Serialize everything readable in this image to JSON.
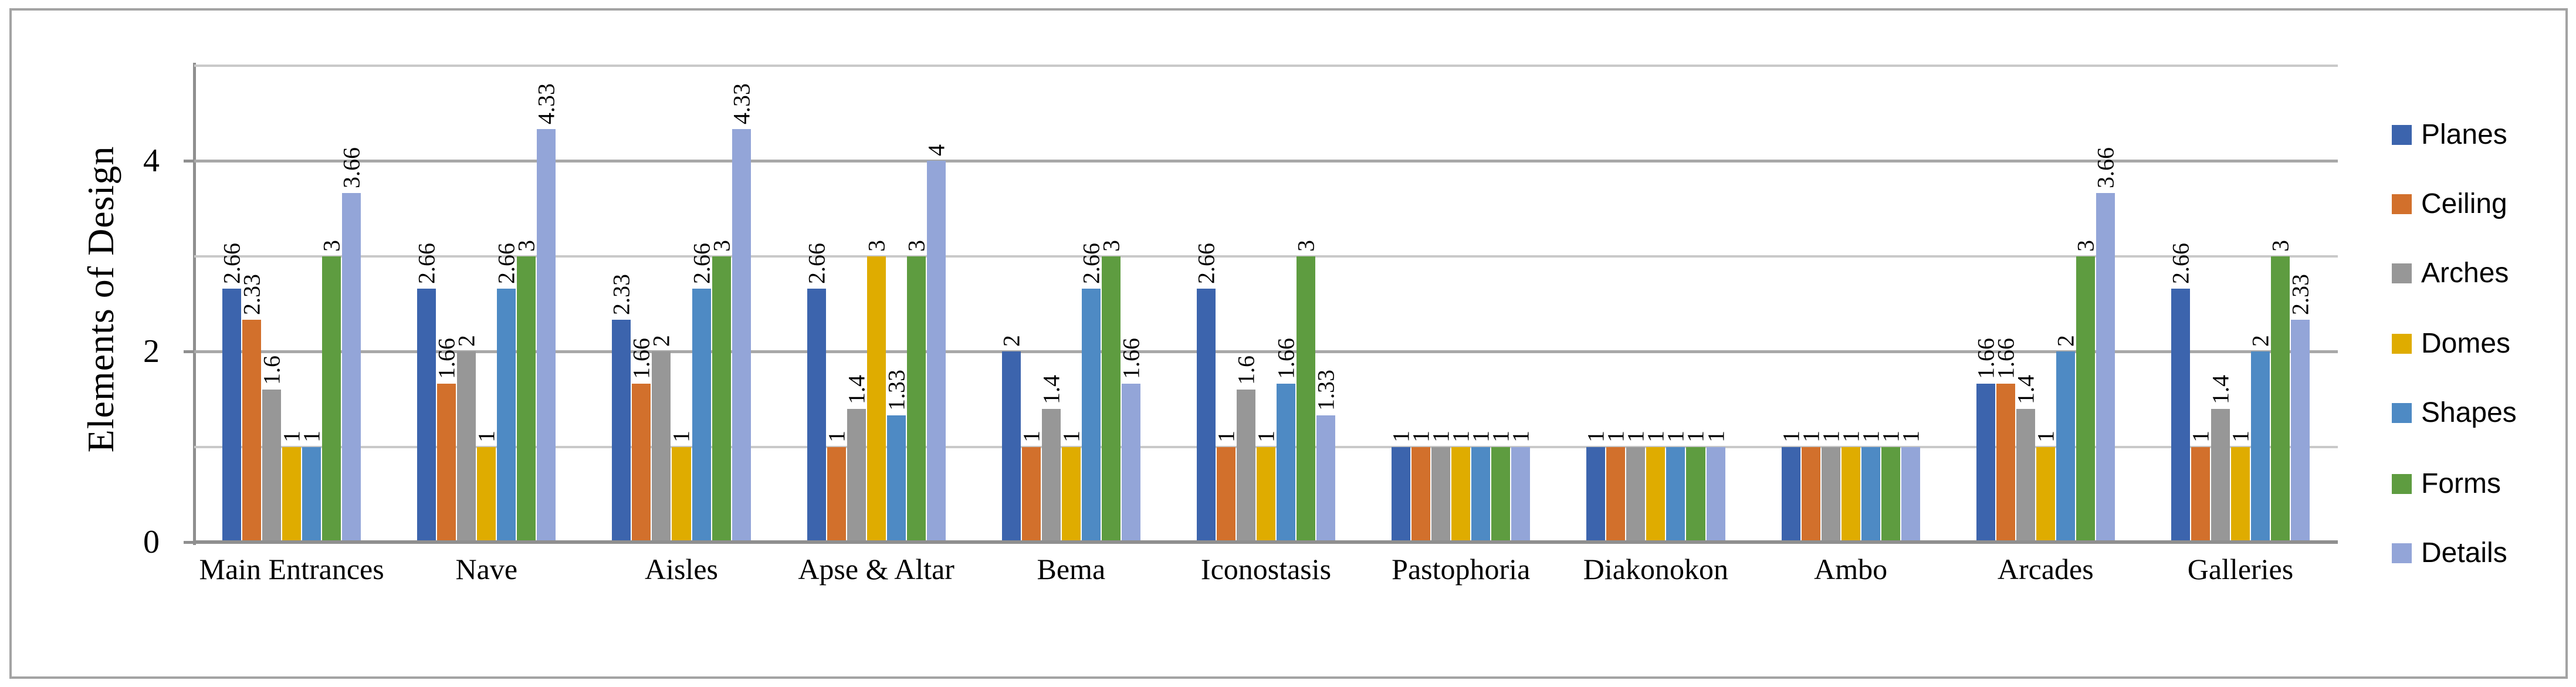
{
  "chart_data": {
    "type": "bar",
    "title": "",
    "ylabel": "Elements of Design",
    "xlabel": "",
    "categories": [
      "Main Entrances",
      "Nave",
      "Aisles",
      "Apse & Altar",
      "Bema",
      "Iconostasis",
      "Pastophoria",
      "Diakonokon",
      "Ambo",
      "Arcades",
      "Galleries"
    ],
    "series": [
      {
        "name": "Planes",
        "color": "#3C64AD",
        "values": [
          2.66,
          2.66,
          2.33,
          2.66,
          2,
          2.66,
          1,
          1,
          1,
          1.66,
          2.66
        ]
      },
      {
        "name": "Ceiling",
        "color": "#D2702C",
        "values": [
          2.33,
          1.66,
          1.66,
          1,
          1,
          1,
          1,
          1,
          1,
          1.66,
          1
        ]
      },
      {
        "name": "Arches",
        "color": "#979797",
        "values": [
          1.6,
          2,
          2,
          1.4,
          1.4,
          1.6,
          1,
          1,
          1,
          1.4,
          1.4
        ]
      },
      {
        "name": "Domes",
        "color": "#DFAC00",
        "values": [
          1,
          1,
          1,
          3,
          1,
          1,
          1,
          1,
          1,
          1,
          1
        ]
      },
      {
        "name": "Shapes",
        "color": "#4E8AC4",
        "values": [
          1,
          2.66,
          2.66,
          1.33,
          2.66,
          1.66,
          1,
          1,
          1,
          2,
          2
        ]
      },
      {
        "name": "Forms",
        "color": "#5E9C40",
        "values": [
          3,
          3,
          3,
          3,
          3,
          3,
          1,
          1,
          1,
          3,
          3
        ]
      },
      {
        "name": "Details",
        "color": "#93A5D8",
        "values": [
          3.66,
          4.33,
          4.33,
          4,
          1.66,
          1.33,
          1,
          1,
          1,
          3.66,
          2.33
        ]
      }
    ],
    "y_axis": {
      "min": 0,
      "max": 5,
      "tick_labels": [
        "0",
        "2",
        "4"
      ],
      "tick_values": [
        0,
        2,
        4
      ],
      "gridline_interval": 1
    },
    "data_labels": "rotated 90° above each bar",
    "legend_position": "right",
    "grid": "horizontal"
  },
  "style": {
    "axis_color": "#8F8F8F",
    "major_gridline_color": "#A8A8A8",
    "minor_gridline_color": "#C9C9C9",
    "frame_color": "#A3A3A3",
    "text_color": "#000000",
    "background": "#ffffff"
  }
}
